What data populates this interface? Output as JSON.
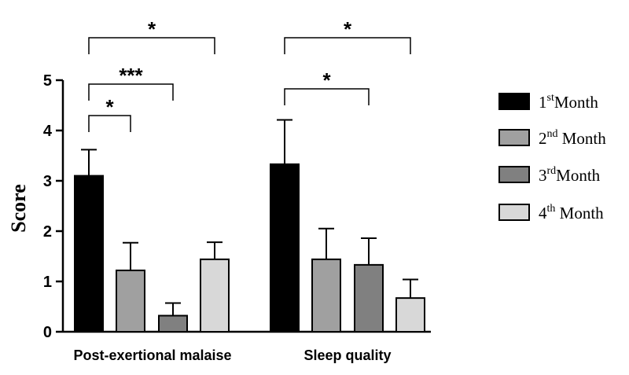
{
  "chart_data": {
    "type": "bar",
    "title": "",
    "xlabel": "",
    "ylabel": "Score",
    "ylim": [
      0,
      5
    ],
    "yticks": [
      "0",
      "1",
      "2",
      "3",
      "4",
      "5"
    ],
    "categories": [
      "Post-exertional malaise",
      "Sleep quality"
    ],
    "error_bars": "upper",
    "legend_position": "right",
    "series": [
      {
        "name": "1stMonth",
        "legend": {
          "num": "1",
          "sup": "st",
          "word": "Month"
        },
        "color": "#000000",
        "values": [
          3.1,
          3.33
        ],
        "errors": [
          0.52,
          0.88
        ]
      },
      {
        "name": "2nd Month",
        "legend": {
          "num": "2",
          "sup": "nd",
          "word": " Month"
        },
        "color": "#a0a0a0",
        "values": [
          1.22,
          1.44
        ],
        "errors": [
          0.55,
          0.61
        ]
      },
      {
        "name": "3rdMonth",
        "legend": {
          "num": "3",
          "sup": "rd",
          "word": "Month"
        },
        "color": "#808080",
        "values": [
          0.32,
          1.33
        ],
        "errors": [
          0.25,
          0.53
        ]
      },
      {
        "name": "4th Month",
        "legend": {
          "num": "4",
          "sup": "th",
          "word": " Month"
        },
        "color": "#d8d8d8",
        "values": [
          1.44,
          0.67
        ],
        "errors": [
          0.34,
          0.37
        ]
      }
    ],
    "significance": [
      {
        "category": 0,
        "from": 0,
        "to": 1,
        "label": "*"
      },
      {
        "category": 0,
        "from": 0,
        "to": 2,
        "label": "***"
      },
      {
        "category": 0,
        "from": 0,
        "to": 3,
        "label": "*"
      },
      {
        "category": 1,
        "from": 0,
        "to": 2,
        "label": "*"
      },
      {
        "category": 1,
        "from": 0,
        "to": 3,
        "label": "*"
      }
    ]
  }
}
